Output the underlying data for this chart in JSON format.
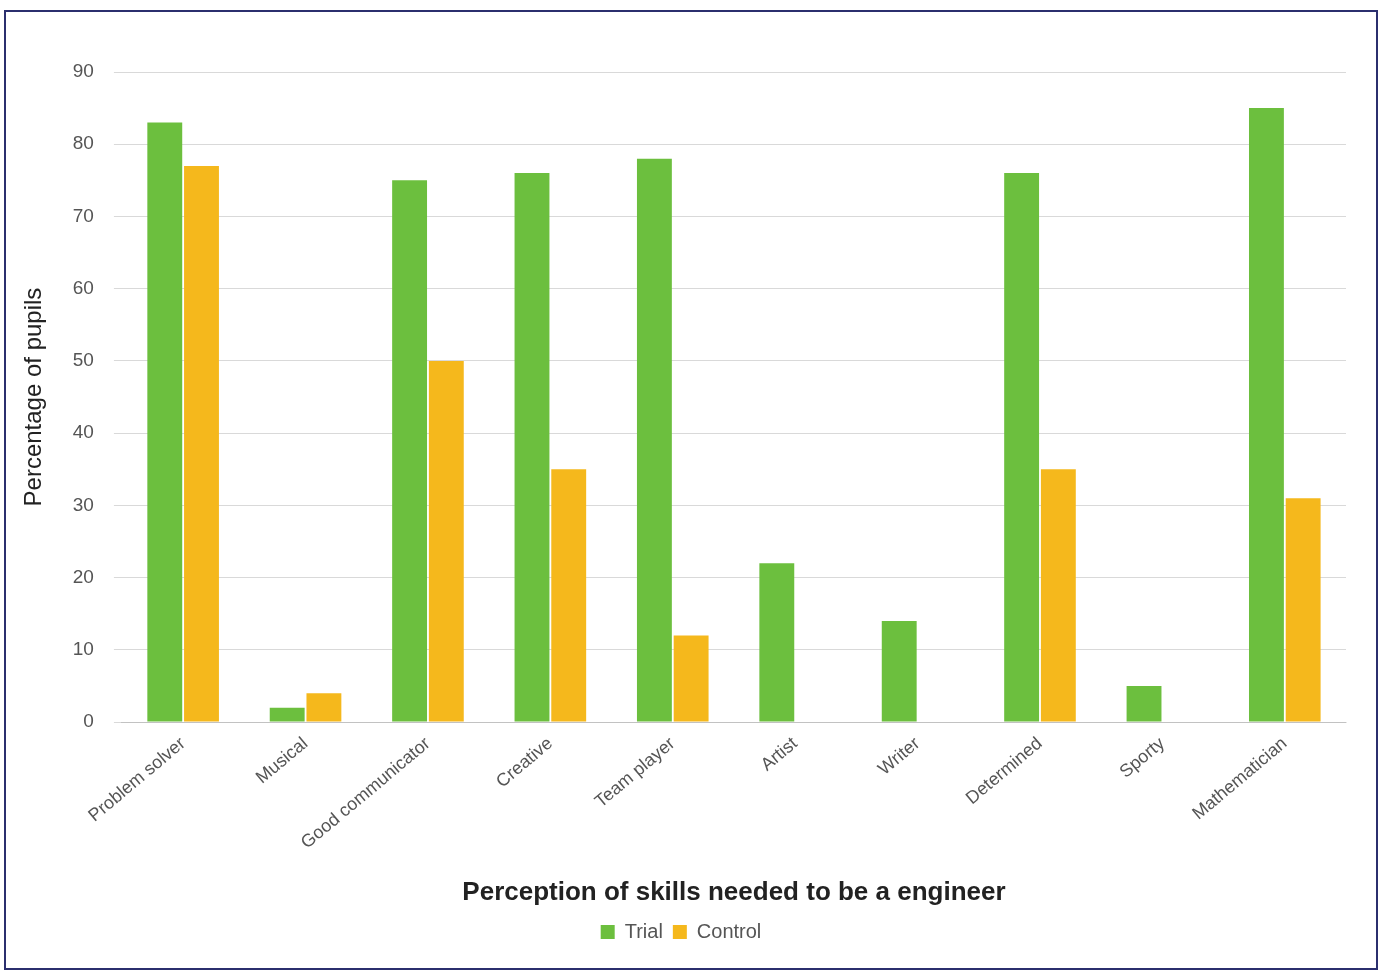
{
  "chart_data": {
    "type": "bar",
    "xlabel": "Perception of skills needed to be a engineer",
    "ylabel": "Percentage of pupils",
    "categories": [
      "Problem solver",
      "Musical",
      "Good communicator",
      "Creative",
      "Team player",
      "Artist",
      "Writer",
      "Determined",
      "Sporty",
      "Mathematician"
    ],
    "series": [
      {
        "name": "Trial",
        "color": "#6cbf3e",
        "values": [
          83,
          2,
          75,
          76,
          78,
          22,
          14,
          76,
          5,
          85
        ]
      },
      {
        "name": "Control",
        "color": "#f5b81c",
        "values": [
          77,
          4,
          50,
          35,
          12,
          0,
          0,
          35,
          0,
          31
        ]
      }
    ],
    "ylim": [
      0,
      90
    ],
    "yticks": [
      0,
      10,
      20,
      30,
      40,
      50,
      60,
      70,
      80,
      90
    ],
    "grid": "y",
    "legend": "bottom"
  }
}
